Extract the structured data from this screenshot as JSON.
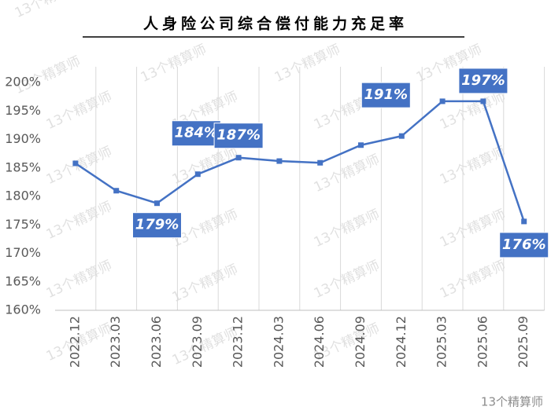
{
  "chart_data": {
    "type": "line",
    "title": "人身险公司综合偿付能力充足率",
    "categories": [
      "2022.12",
      "2023.03",
      "2023.06",
      "2023.09",
      "2023.12",
      "2024.03",
      "2024.06",
      "2024.09",
      "2024.12",
      "2025.03",
      "2025.06",
      "2025.09"
    ],
    "series": [
      {
        "color": "#4472c4",
        "values": [
          185.8,
          181.0,
          178.8,
          183.9,
          186.8,
          186.2,
          185.9,
          189.0,
          190.6,
          196.7,
          196.7,
          175.6
        ],
        "value_labels": [
          null,
          null,
          "179%",
          "184%",
          "187%",
          null,
          null,
          null,
          "191%",
          null,
          "197%",
          "176%"
        ]
      }
    ],
    "ylim": [
      160,
      200
    ],
    "yticks": [
      {
        "value": 160,
        "label": "160%"
      },
      {
        "value": 165,
        "label": "165%"
      },
      {
        "value": 170,
        "label": "170%"
      },
      {
        "value": 175,
        "label": "175%"
      },
      {
        "value": 180,
        "label": "180%"
      },
      {
        "value": 185,
        "label": "185%"
      },
      {
        "value": 190,
        "label": "190%"
      },
      {
        "value": 195,
        "label": "195%"
      },
      {
        "value": 200,
        "label": "200%"
      }
    ],
    "grid": true,
    "watermark": "13个精算师"
  }
}
